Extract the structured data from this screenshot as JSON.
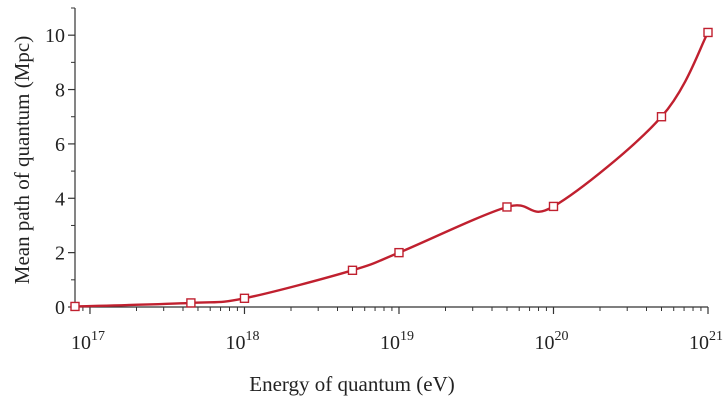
{
  "chart_data": {
    "type": "line",
    "title": "",
    "xlabel": "Energy of quantum (eV)",
    "ylabel": "Mean path of quantum (Mpc)",
    "x_scale": "log",
    "xlim": [
      8e+16,
      1e+21
    ],
    "ylim": [
      0,
      11
    ],
    "x_ticks": [
      {
        "value": 1e+17,
        "base": "10",
        "exp": "17"
      },
      {
        "value": 1e+18,
        "base": "10",
        "exp": "18"
      },
      {
        "value": 1e+19,
        "base": "10",
        "exp": "19"
      },
      {
        "value": 1e+20,
        "base": "10",
        "exp": "20"
      },
      {
        "value": 1e+21,
        "base": "10",
        "exp": "21"
      }
    ],
    "y_ticks": [
      "0",
      "2",
      "4",
      "6",
      "8",
      "10"
    ],
    "grid": false,
    "series": [
      {
        "color": "#c0202f",
        "marker": "open-square",
        "points": [
          {
            "x": 8e+16,
            "y": 0.02
          },
          {
            "x": 4.5e+17,
            "y": 0.15
          },
          {
            "x": 1e+18,
            "y": 0.32
          },
          {
            "x": 5e+18,
            "y": 1.35
          },
          {
            "x": 1e+19,
            "y": 2.0
          },
          {
            "x": 5e+19,
            "y": 3.68
          },
          {
            "x": 1e+20,
            "y": 3.7
          },
          {
            "x": 5e+20,
            "y": 7.0
          },
          {
            "x": 1e+21,
            "y": 10.1
          }
        ]
      }
    ]
  }
}
